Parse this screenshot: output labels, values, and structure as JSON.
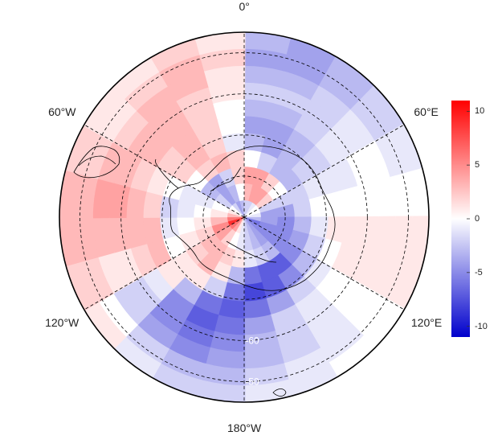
{
  "map": {
    "projection": "south-polar-stereographic",
    "field_rings": [
      {
        "values": [
          -2,
          -2,
          -1,
          0,
          0,
          -1,
          -3,
          -6,
          -5,
          -4,
          -3,
          -2,
          -1,
          1,
          4,
          6,
          9,
          6,
          3,
          1,
          0,
          -2,
          -4,
          -3
        ]
      },
      {
        "values": [
          3,
          4,
          4,
          2,
          -2,
          -4,
          -4,
          -5,
          -5,
          -4,
          -3,
          -2,
          -1,
          0,
          2,
          4,
          5,
          3,
          1,
          0,
          -2,
          -4,
          -3,
          0
        ]
      },
      {
        "values": [
          4,
          4,
          2,
          0,
          -2,
          -4,
          -5,
          -5,
          -5,
          -3,
          -2,
          -1,
          1,
          2,
          3,
          3,
          2,
          1,
          0,
          -1,
          -3,
          -4,
          -2,
          2
        ]
      },
      {
        "values": [
          0,
          -2,
          -3,
          -3,
          -2,
          -2,
          -3,
          -4,
          -5,
          -7,
          -7,
          -6,
          -3,
          1,
          3,
          2,
          1,
          0,
          -1,
          -1,
          0,
          2,
          3,
          2
        ]
      },
      {
        "values": [
          -3,
          -4,
          -3,
          -2,
          -1,
          0,
          -1,
          -2,
          -3,
          -5,
          -7,
          -8,
          -6,
          -2,
          1,
          1,
          0,
          -1,
          -2,
          0,
          2,
          3,
          2,
          -1
        ]
      },
      {
        "values": [
          -4,
          -4,
          -3,
          -2,
          -1,
          0,
          1,
          0,
          -1,
          -2,
          -4,
          -6,
          -7,
          -6,
          -3,
          1,
          3,
          3,
          2,
          1,
          2,
          3,
          2,
          0
        ]
      },
      {
        "values": [
          -3,
          -3,
          -2,
          -1,
          -1,
          0,
          1,
          1,
          0,
          -1,
          -2,
          -4,
          -6,
          -7,
          -5,
          -1,
          2,
          3,
          3,
          2,
          3,
          3,
          2,
          0
        ]
      },
      {
        "values": [
          -2,
          -2,
          -2,
          -1,
          0,
          0,
          1,
          1,
          0,
          -1,
          -2,
          -3,
          -5,
          -6,
          -5,
          -2,
          1,
          3,
          4,
          3,
          3,
          3,
          2,
          1
        ]
      },
      {
        "values": [
          -3,
          -3,
          -2,
          -1,
          0,
          0,
          1,
          1,
          0,
          -1,
          -2,
          -3,
          -4,
          -5,
          -4,
          -2,
          1,
          3,
          4,
          3,
          2,
          3,
          3,
          1
        ]
      },
      {
        "values": [
          -4,
          -4,
          -3,
          -2,
          -1,
          0,
          1,
          1,
          0,
          -1,
          -1,
          -2,
          -3,
          -3,
          -2,
          0,
          2,
          3,
          3,
          2,
          1,
          2,
          3,
          2
        ]
      },
      {
        "values": [
          -3,
          -4,
          -3,
          -2,
          -1,
          0,
          1,
          1,
          0,
          0,
          -1,
          -1,
          -2,
          -2,
          -1,
          1,
          2,
          3,
          3,
          2,
          1,
          1,
          2,
          1
        ]
      }
    ],
    "ring_labels": [
      {
        "text": "-60",
        "value": -60
      },
      {
        "text": "-50",
        "value": -50
      }
    ],
    "lon_labels": [
      {
        "text": "0°",
        "lon": 0
      },
      {
        "text": "60°E",
        "lon": 60
      },
      {
        "text": "120°E",
        "lon": 120
      },
      {
        "text": "180°W",
        "lon": 180
      },
      {
        "text": "120°W",
        "lon": -120
      },
      {
        "text": "60°W",
        "lon": -60
      }
    ],
    "meridians": [
      0,
      60,
      120,
      180,
      240,
      300
    ],
    "parallels": [
      -80,
      -70,
      -60,
      -50
    ],
    "grid_style": "dashed",
    "colormap": {
      "negative": "#0000cc",
      "zero": "#ffffff",
      "positive": "#ff0000"
    }
  },
  "colorbar": {
    "min": -11,
    "max": 11,
    "ticks": [
      {
        "label": "10",
        "value": 10
      },
      {
        "label": "5",
        "value": 5
      },
      {
        "label": "0",
        "value": 0
      },
      {
        "label": "-5",
        "value": -5
      },
      {
        "label": "-10",
        "value": -10
      }
    ]
  }
}
